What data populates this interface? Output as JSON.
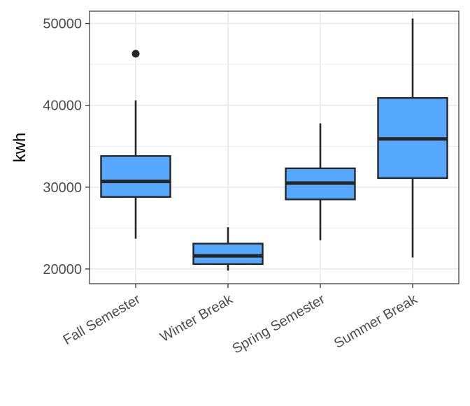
{
  "chart_data": {
    "type": "box",
    "title": "",
    "xlabel": "",
    "ylabel": "kwh",
    "ylim": [
      18200,
      51500
    ],
    "yticks": [
      20000,
      30000,
      40000,
      50000
    ],
    "grid": true,
    "legend": "none",
    "colors": {
      "box_fill": "#56A8FF",
      "stroke": "#262626",
      "grid": "#ebebeb",
      "panel_border": "#333333"
    },
    "categories": [
      "Fall Semester",
      "Winter Break",
      "Spring Semester",
      "Summer Break"
    ],
    "boxes": [
      {
        "category": "Fall Semester",
        "whisker_low": 23700,
        "q1": 28800,
        "median": 30700,
        "q3": 33800,
        "whisker_high": 40600,
        "outliers": [
          46300
        ]
      },
      {
        "category": "Winter Break",
        "whisker_low": 19800,
        "q1": 20600,
        "median": 21600,
        "q3": 23100,
        "whisker_high": 25100,
        "outliers": []
      },
      {
        "category": "Spring Semester",
        "whisker_low": 23500,
        "q1": 28500,
        "median": 30500,
        "q3": 32300,
        "whisker_high": 37800,
        "outliers": []
      },
      {
        "category": "Summer Break",
        "whisker_low": 21400,
        "q1": 31100,
        "median": 35900,
        "q3": 40900,
        "whisker_high": 50600,
        "outliers": []
      }
    ]
  }
}
